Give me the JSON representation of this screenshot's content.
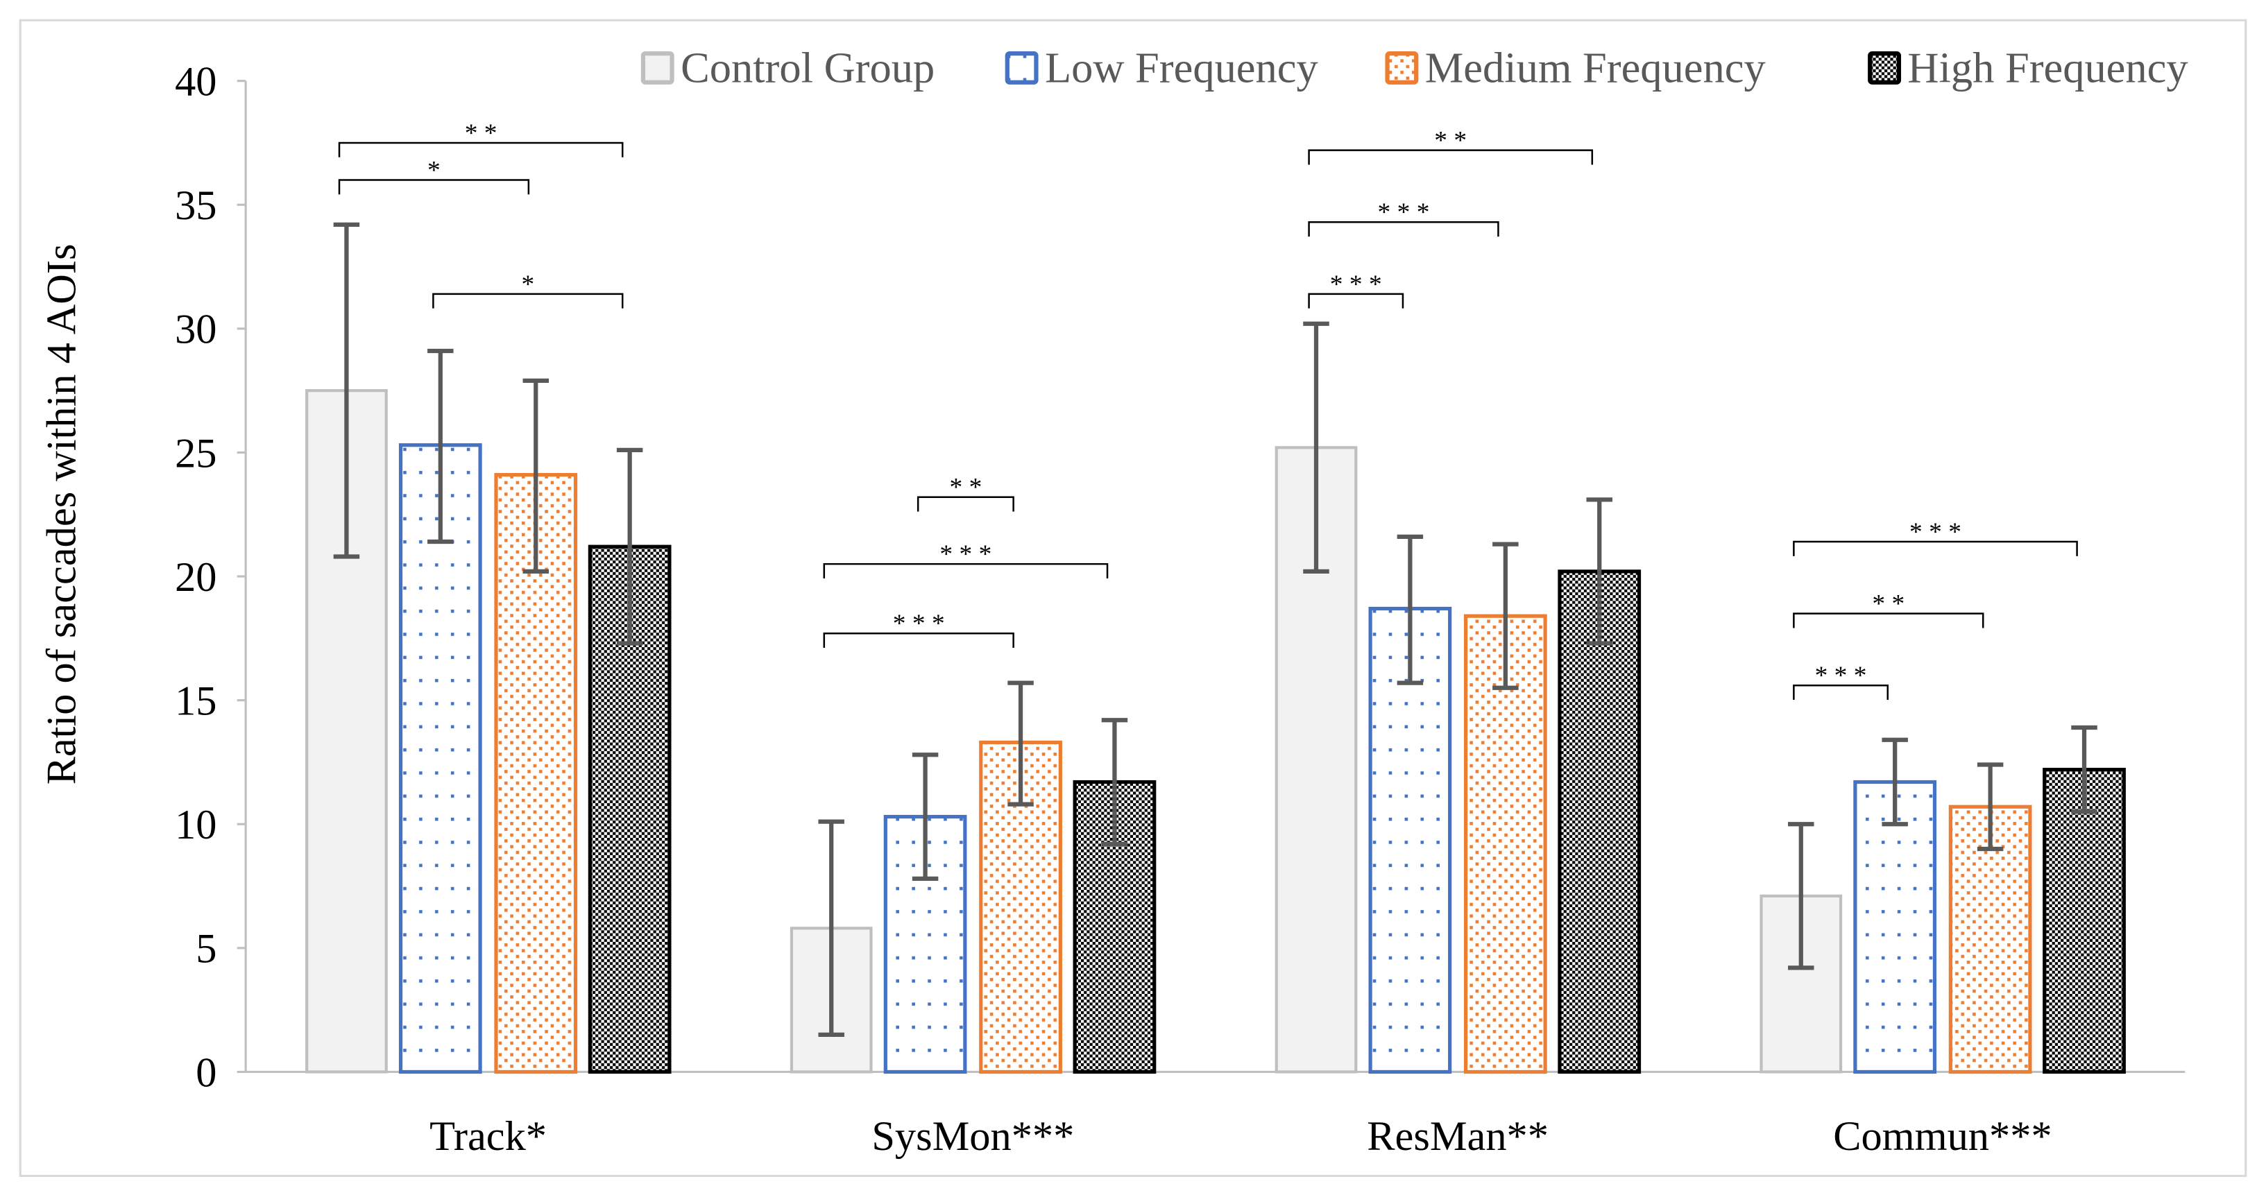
{
  "chart_data": {
    "type": "bar",
    "title": "",
    "xlabel": "",
    "ylabel": "Ratio of saccades within 4 AOIs",
    "ylim": [
      0,
      40
    ],
    "yticks": [
      0,
      5,
      10,
      15,
      20,
      25,
      30,
      35,
      40
    ],
    "grid": false,
    "legend_position": "top-right",
    "categories": [
      "Track*",
      "SysMon***",
      "ResMan**",
      "Commun***"
    ],
    "series": [
      {
        "name": "Control Group",
        "color": "#bfbfbf",
        "fill": "#f2f2f2",
        "pattern": "solid",
        "values": [
          27.5,
          5.8,
          25.2,
          7.1
        ],
        "err_low": [
          20.8,
          1.5,
          20.2,
          4.2
        ],
        "err_high": [
          34.2,
          10.1,
          30.2,
          10.0
        ]
      },
      {
        "name": "Low Frequency",
        "color": "#4472c4",
        "pattern": "sparse-dots",
        "values": [
          25.3,
          10.3,
          18.7,
          11.7
        ],
        "err_low": [
          21.4,
          7.8,
          15.7,
          10.0
        ],
        "err_high": [
          29.1,
          12.8,
          21.6,
          13.4
        ]
      },
      {
        "name": "Medium  Frequency",
        "color": "#ed7d31",
        "pattern": "dense-dots",
        "values": [
          24.1,
          13.3,
          18.4,
          10.7
        ],
        "err_low": [
          20.2,
          10.8,
          15.5,
          9.0
        ],
        "err_high": [
          27.9,
          15.7,
          21.3,
          12.4
        ]
      },
      {
        "name": "High Frequency",
        "color": "#000000",
        "pattern": "checker",
        "values": [
          21.2,
          11.7,
          20.2,
          12.2
        ],
        "err_low": [
          17.3,
          9.2,
          17.3,
          10.5
        ],
        "err_high": [
          25.1,
          14.2,
          23.1,
          13.9
        ]
      }
    ],
    "significance": [
      {
        "category": 0,
        "from": 0,
        "to": 3,
        "label": "* *",
        "level": 37.5
      },
      {
        "category": 0,
        "from": 0,
        "to": 2,
        "label": "*",
        "level": 36.0
      },
      {
        "category": 0,
        "from": 1,
        "to": 3,
        "label": "*",
        "level": 31.4
      },
      {
        "category": 1,
        "from": 1,
        "to": 2,
        "label": "* *",
        "level": 23.2
      },
      {
        "category": 1,
        "from": 0,
        "to": 3,
        "label": "* * *",
        "level": 20.5
      },
      {
        "category": 1,
        "from": 0,
        "to": 2,
        "label": "* * *",
        "level": 17.7
      },
      {
        "category": 2,
        "from": 0,
        "to": 3,
        "label": "* *",
        "level": 37.2
      },
      {
        "category": 2,
        "from": 0,
        "to": 2,
        "label": "* * *",
        "level": 34.3
      },
      {
        "category": 2,
        "from": 0,
        "to": 1,
        "label": "* * *",
        "level": 31.4
      },
      {
        "category": 3,
        "from": 0,
        "to": 3,
        "label": "* * *",
        "level": 21.4
      },
      {
        "category": 3,
        "from": 0,
        "to": 2,
        "label": "* *",
        "level": 18.5
      },
      {
        "category": 3,
        "from": 0,
        "to": 1,
        "label": "* * *",
        "level": 15.6
      }
    ]
  }
}
